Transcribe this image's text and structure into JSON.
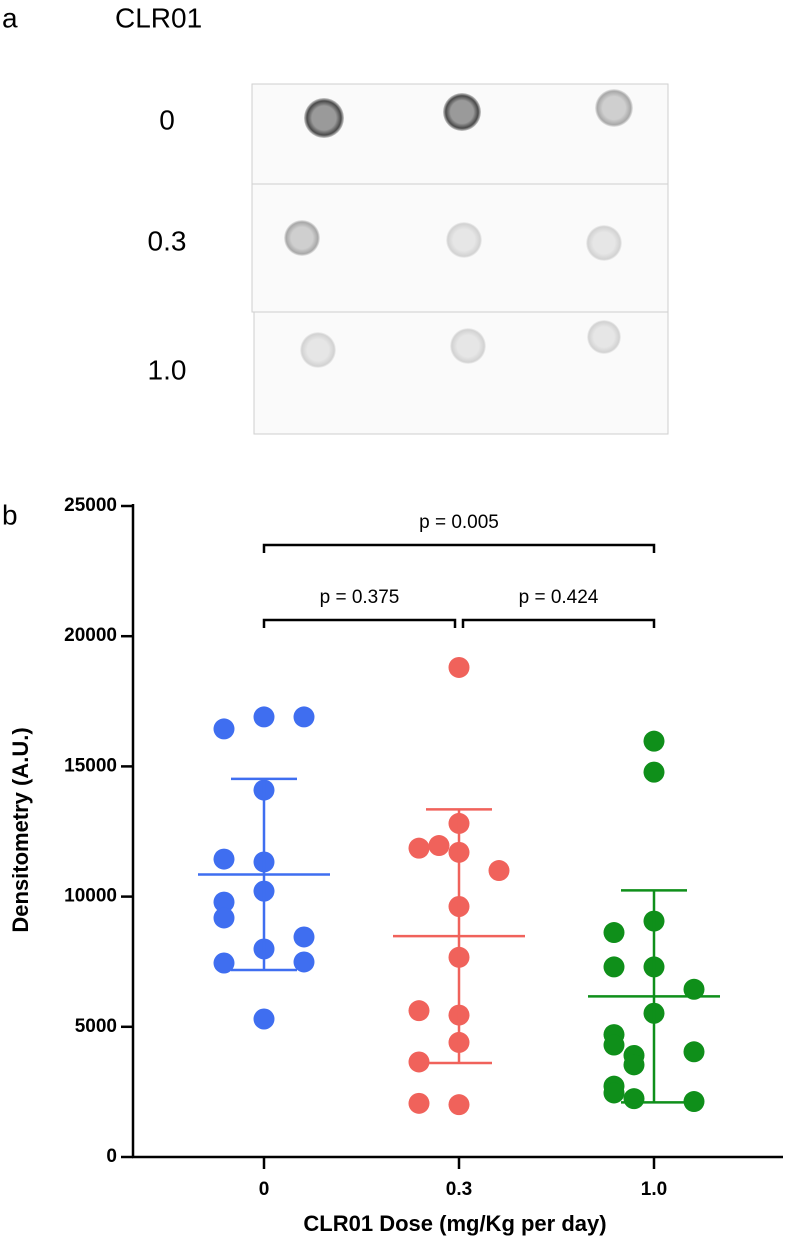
{
  "panel_a": {
    "label": "a",
    "header": "CLR01",
    "rows": [
      "0",
      "0.3",
      "1.0"
    ]
  },
  "chart_data": {
    "type": "dot",
    "panel_label": "b",
    "y_label": "Densitometry (A.U.)",
    "x_label": "CLR01 Dose (mg/Kg per day)",
    "categories": [
      "0",
      "0.3",
      "1.0"
    ],
    "ylim": [
      0,
      25000
    ],
    "yticks": [
      0,
      5000,
      10000,
      15000,
      20000,
      25000
    ],
    "groups": [
      {
        "color": "#3f6ef0",
        "mean": 10850,
        "sd": 3670,
        "values": [
          16900,
          16440,
          16900,
          14090,
          11330,
          11440,
          10210,
          9790,
          9180,
          7990,
          8450,
          7450,
          7490,
          5300
        ]
      },
      {
        "color": "#f0625b",
        "mean": 8480,
        "sd": 4870,
        "values": [
          18800,
          12810,
          11700,
          11860,
          11960,
          11000,
          9620,
          7670,
          5450,
          5620,
          4400,
          3650,
          2010,
          2060
        ]
      },
      {
        "color": "#0f8f1a",
        "mean": 6170,
        "sd": 4070,
        "values": [
          15970,
          14780,
          9060,
          8620,
          7300,
          7300,
          6440,
          5520,
          4700,
          4300,
          4040,
          3900,
          3540,
          2720,
          2460,
          2130,
          2240
        ]
      }
    ],
    "comparisons": [
      {
        "from": 0,
        "to": 2,
        "label": "p = 0.005"
      },
      {
        "from": 0,
        "to": 1,
        "label": "p = 0.375"
      },
      {
        "from": 1,
        "to": 2,
        "label": "p = 0.424"
      }
    ]
  }
}
